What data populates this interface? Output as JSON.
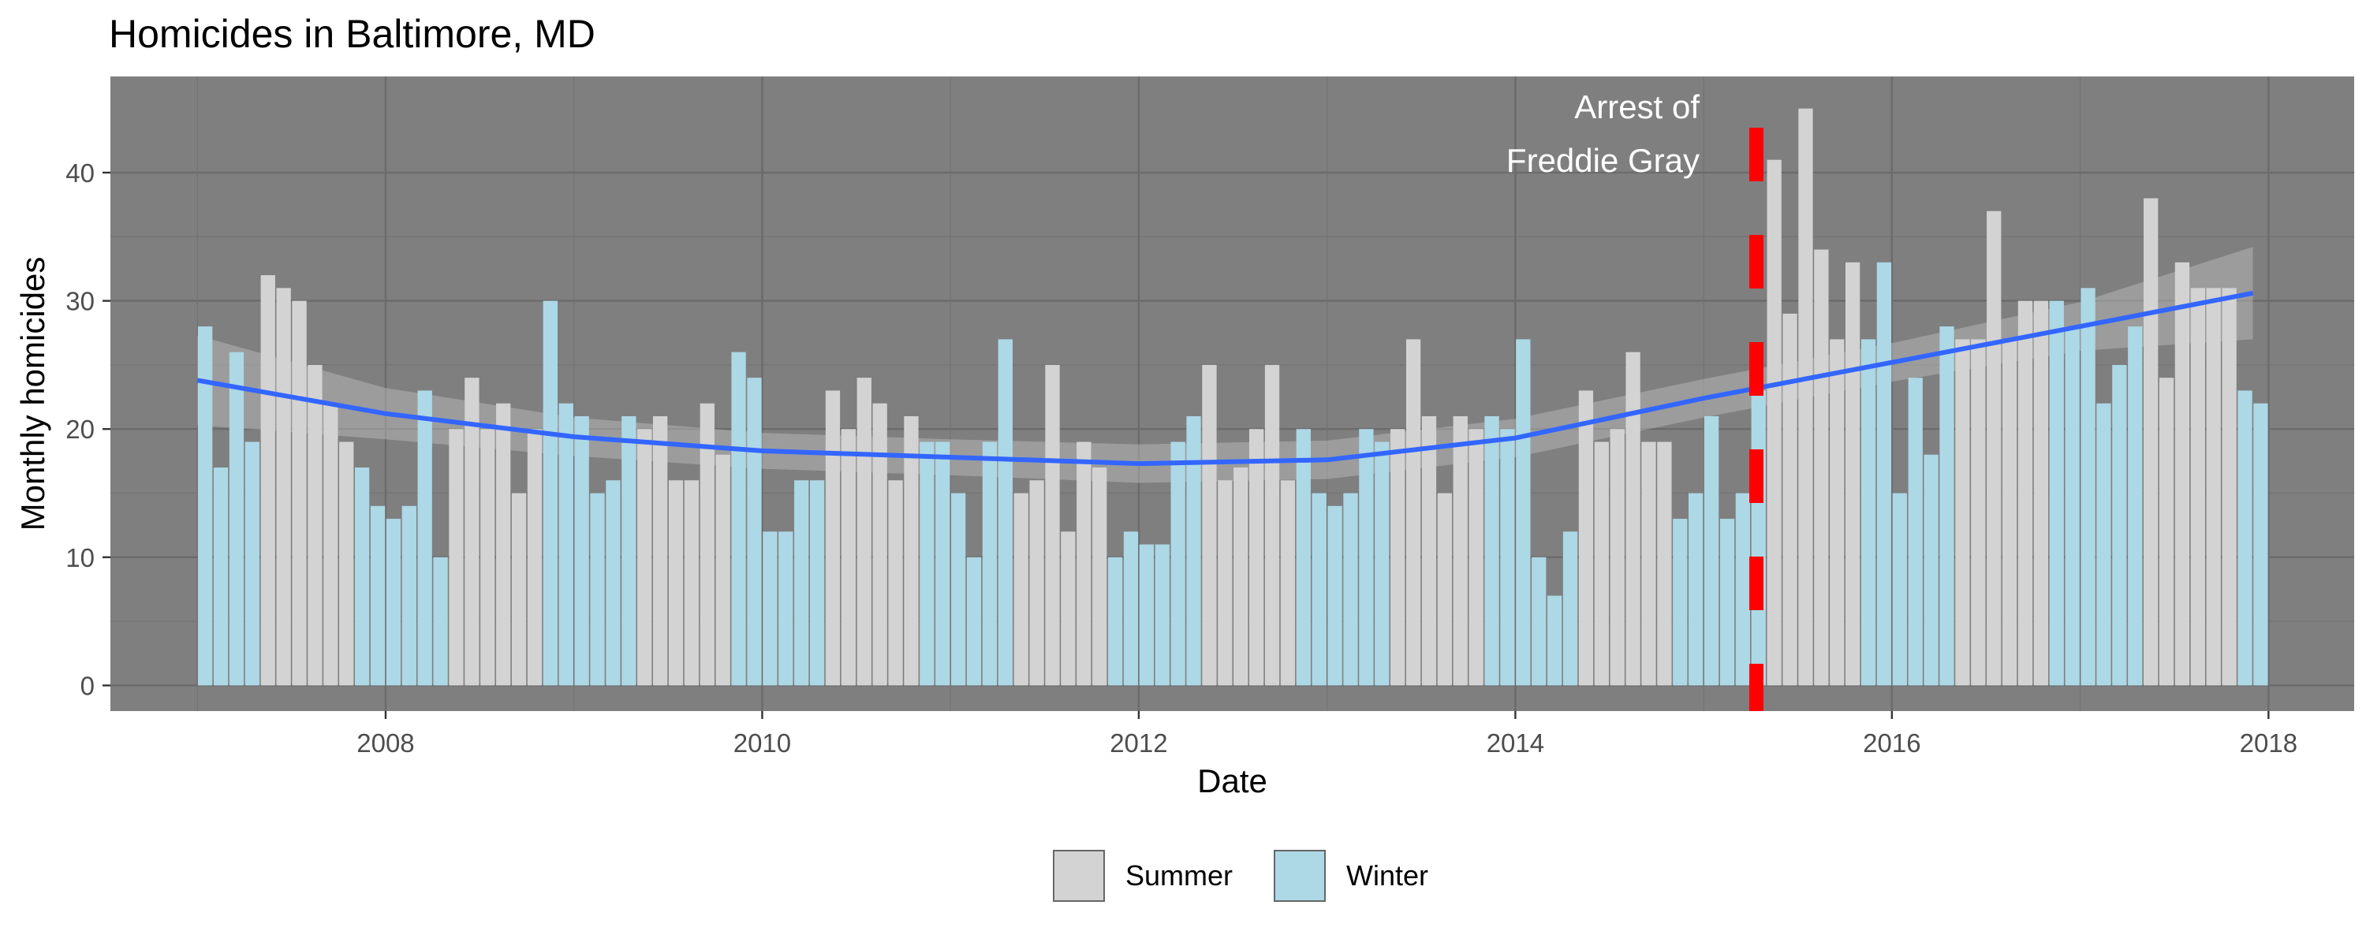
{
  "chart_data": {
    "type": "bar",
    "title": "Homicides in Baltimore, MD",
    "xlabel": "Date",
    "ylabel": "Monthly homicides",
    "x_range": [
      "2006-07-15",
      "2018-06-15"
    ],
    "ylim": [
      -2,
      47.5
    ],
    "x_ticks": [
      "2008",
      "2010",
      "2012",
      "2014",
      "2016",
      "2018"
    ],
    "y_ticks": [
      0,
      10,
      20,
      30,
      40
    ],
    "grid": true,
    "panel_background": "#7f7f7f",
    "series": [
      {
        "name": "Summer",
        "color": "#d3d3d3"
      },
      {
        "name": "Winter",
        "color": "#add8e6"
      }
    ],
    "points": [
      {
        "date": "2007-01",
        "value": 28,
        "season": "Winter"
      },
      {
        "date": "2007-02",
        "value": 17,
        "season": "Winter"
      },
      {
        "date": "2007-03",
        "value": 26,
        "season": "Winter"
      },
      {
        "date": "2007-04",
        "value": 19,
        "season": "Winter"
      },
      {
        "date": "2007-05",
        "value": 32,
        "season": "Summer"
      },
      {
        "date": "2007-06",
        "value": 31,
        "season": "Summer"
      },
      {
        "date": "2007-07",
        "value": 30,
        "season": "Summer"
      },
      {
        "date": "2007-08",
        "value": 25,
        "season": "Summer"
      },
      {
        "date": "2007-09",
        "value": 22,
        "season": "Summer"
      },
      {
        "date": "2007-10",
        "value": 19,
        "season": "Summer"
      },
      {
        "date": "2007-11",
        "value": 17,
        "season": "Winter"
      },
      {
        "date": "2007-12",
        "value": 14,
        "season": "Winter"
      },
      {
        "date": "2008-01",
        "value": 13,
        "season": "Winter"
      },
      {
        "date": "2008-02",
        "value": 14,
        "season": "Winter"
      },
      {
        "date": "2008-03",
        "value": 23,
        "season": "Winter"
      },
      {
        "date": "2008-04",
        "value": 10,
        "season": "Winter"
      },
      {
        "date": "2008-05",
        "value": 20,
        "season": "Summer"
      },
      {
        "date": "2008-06",
        "value": 24,
        "season": "Summer"
      },
      {
        "date": "2008-07",
        "value": 20,
        "season": "Summer"
      },
      {
        "date": "2008-08",
        "value": 22,
        "season": "Summer"
      },
      {
        "date": "2008-09",
        "value": 15,
        "season": "Summer"
      },
      {
        "date": "2008-10",
        "value": 20,
        "season": "Summer"
      },
      {
        "date": "2008-11",
        "value": 30,
        "season": "Winter"
      },
      {
        "date": "2008-12",
        "value": 22,
        "season": "Winter"
      },
      {
        "date": "2009-01",
        "value": 21,
        "season": "Winter"
      },
      {
        "date": "2009-02",
        "value": 15,
        "season": "Winter"
      },
      {
        "date": "2009-03",
        "value": 16,
        "season": "Winter"
      },
      {
        "date": "2009-04",
        "value": 21,
        "season": "Winter"
      },
      {
        "date": "2009-05",
        "value": 20,
        "season": "Summer"
      },
      {
        "date": "2009-06",
        "value": 21,
        "season": "Summer"
      },
      {
        "date": "2009-07",
        "value": 16,
        "season": "Summer"
      },
      {
        "date": "2009-08",
        "value": 16,
        "season": "Summer"
      },
      {
        "date": "2009-09",
        "value": 22,
        "season": "Summer"
      },
      {
        "date": "2009-10",
        "value": 18,
        "season": "Summer"
      },
      {
        "date": "2009-11",
        "value": 26,
        "season": "Winter"
      },
      {
        "date": "2009-12",
        "value": 24,
        "season": "Winter"
      },
      {
        "date": "2010-01",
        "value": 12,
        "season": "Winter"
      },
      {
        "date": "2010-02",
        "value": 12,
        "season": "Winter"
      },
      {
        "date": "2010-03",
        "value": 16,
        "season": "Winter"
      },
      {
        "date": "2010-04",
        "value": 16,
        "season": "Winter"
      },
      {
        "date": "2010-05",
        "value": 23,
        "season": "Summer"
      },
      {
        "date": "2010-06",
        "value": 20,
        "season": "Summer"
      },
      {
        "date": "2010-07",
        "value": 24,
        "season": "Summer"
      },
      {
        "date": "2010-08",
        "value": 22,
        "season": "Summer"
      },
      {
        "date": "2010-09",
        "value": 16,
        "season": "Summer"
      },
      {
        "date": "2010-10",
        "value": 21,
        "season": "Summer"
      },
      {
        "date": "2010-11",
        "value": 19,
        "season": "Winter"
      },
      {
        "date": "2010-12",
        "value": 19,
        "season": "Winter"
      },
      {
        "date": "2011-01",
        "value": 15,
        "season": "Winter"
      },
      {
        "date": "2011-02",
        "value": 10,
        "season": "Winter"
      },
      {
        "date": "2011-03",
        "value": 19,
        "season": "Winter"
      },
      {
        "date": "2011-04",
        "value": 27,
        "season": "Winter"
      },
      {
        "date": "2011-05",
        "value": 15,
        "season": "Summer"
      },
      {
        "date": "2011-06",
        "value": 16,
        "season": "Summer"
      },
      {
        "date": "2011-07",
        "value": 25,
        "season": "Summer"
      },
      {
        "date": "2011-08",
        "value": 12,
        "season": "Summer"
      },
      {
        "date": "2011-09",
        "value": 19,
        "season": "Summer"
      },
      {
        "date": "2011-10",
        "value": 17,
        "season": "Summer"
      },
      {
        "date": "2011-11",
        "value": 10,
        "season": "Winter"
      },
      {
        "date": "2011-12",
        "value": 12,
        "season": "Winter"
      },
      {
        "date": "2012-01",
        "value": 11,
        "season": "Winter"
      },
      {
        "date": "2012-02",
        "value": 11,
        "season": "Winter"
      },
      {
        "date": "2012-03",
        "value": 19,
        "season": "Winter"
      },
      {
        "date": "2012-04",
        "value": 21,
        "season": "Winter"
      },
      {
        "date": "2012-05",
        "value": 25,
        "season": "Summer"
      },
      {
        "date": "2012-06",
        "value": 16,
        "season": "Summer"
      },
      {
        "date": "2012-07",
        "value": 17,
        "season": "Summer"
      },
      {
        "date": "2012-08",
        "value": 20,
        "season": "Summer"
      },
      {
        "date": "2012-09",
        "value": 25,
        "season": "Summer"
      },
      {
        "date": "2012-10",
        "value": 16,
        "season": "Summer"
      },
      {
        "date": "2012-11",
        "value": 20,
        "season": "Winter"
      },
      {
        "date": "2012-12",
        "value": 15,
        "season": "Winter"
      },
      {
        "date": "2013-01",
        "value": 14,
        "season": "Winter"
      },
      {
        "date": "2013-02",
        "value": 15,
        "season": "Winter"
      },
      {
        "date": "2013-03",
        "value": 20,
        "season": "Winter"
      },
      {
        "date": "2013-04",
        "value": 19,
        "season": "Winter"
      },
      {
        "date": "2013-05",
        "value": 20,
        "season": "Summer"
      },
      {
        "date": "2013-06",
        "value": 27,
        "season": "Summer"
      },
      {
        "date": "2013-07",
        "value": 21,
        "season": "Summer"
      },
      {
        "date": "2013-08",
        "value": 15,
        "season": "Summer"
      },
      {
        "date": "2013-09",
        "value": 21,
        "season": "Summer"
      },
      {
        "date": "2013-10",
        "value": 20,
        "season": "Summer"
      },
      {
        "date": "2013-11",
        "value": 21,
        "season": "Winter"
      },
      {
        "date": "2013-12",
        "value": 20,
        "season": "Winter"
      },
      {
        "date": "2014-01",
        "value": 27,
        "season": "Winter"
      },
      {
        "date": "2014-02",
        "value": 10,
        "season": "Winter"
      },
      {
        "date": "2014-03",
        "value": 7,
        "season": "Winter"
      },
      {
        "date": "2014-04",
        "value": 12,
        "season": "Winter"
      },
      {
        "date": "2014-05",
        "value": 23,
        "season": "Summer"
      },
      {
        "date": "2014-06",
        "value": 19,
        "season": "Summer"
      },
      {
        "date": "2014-07",
        "value": 20,
        "season": "Summer"
      },
      {
        "date": "2014-08",
        "value": 26,
        "season": "Summer"
      },
      {
        "date": "2014-09",
        "value": 19,
        "season": "Summer"
      },
      {
        "date": "2014-10",
        "value": 19,
        "season": "Summer"
      },
      {
        "date": "2014-11",
        "value": 13,
        "season": "Winter"
      },
      {
        "date": "2014-12",
        "value": 15,
        "season": "Winter"
      },
      {
        "date": "2015-01",
        "value": 21,
        "season": "Winter"
      },
      {
        "date": "2015-02",
        "value": 13,
        "season": "Winter"
      },
      {
        "date": "2015-03",
        "value": 15,
        "season": "Winter"
      },
      {
        "date": "2015-04",
        "value": 23,
        "season": "Winter"
      },
      {
        "date": "2015-05",
        "value": 41,
        "season": "Summer"
      },
      {
        "date": "2015-06",
        "value": 29,
        "season": "Summer"
      },
      {
        "date": "2015-07",
        "value": 45,
        "season": "Summer"
      },
      {
        "date": "2015-08",
        "value": 34,
        "season": "Summer"
      },
      {
        "date": "2015-09",
        "value": 27,
        "season": "Summer"
      },
      {
        "date": "2015-10",
        "value": 33,
        "season": "Summer"
      },
      {
        "date": "2015-11",
        "value": 27,
        "season": "Winter"
      },
      {
        "date": "2015-12",
        "value": 33,
        "season": "Winter"
      },
      {
        "date": "2016-01",
        "value": 15,
        "season": "Winter"
      },
      {
        "date": "2016-02",
        "value": 24,
        "season": "Winter"
      },
      {
        "date": "2016-03",
        "value": 18,
        "season": "Winter"
      },
      {
        "date": "2016-04",
        "value": 28,
        "season": "Winter"
      },
      {
        "date": "2016-05",
        "value": 27,
        "season": "Summer"
      },
      {
        "date": "2016-06",
        "value": 27,
        "season": "Summer"
      },
      {
        "date": "2016-07",
        "value": 37,
        "season": "Summer"
      },
      {
        "date": "2016-08",
        "value": 27,
        "season": "Summer"
      },
      {
        "date": "2016-09",
        "value": 30,
        "season": "Summer"
      },
      {
        "date": "2016-10",
        "value": 30,
        "season": "Summer"
      },
      {
        "date": "2016-11",
        "value": 30,
        "season": "Winter"
      },
      {
        "date": "2016-12",
        "value": 28,
        "season": "Winter"
      },
      {
        "date": "2017-01",
        "value": 31,
        "season": "Winter"
      },
      {
        "date": "2017-02",
        "value": 22,
        "season": "Winter"
      },
      {
        "date": "2017-03",
        "value": 25,
        "season": "Winter"
      },
      {
        "date": "2017-04",
        "value": 28,
        "season": "Winter"
      },
      {
        "date": "2017-05",
        "value": 38,
        "season": "Summer"
      },
      {
        "date": "2017-06",
        "value": 24,
        "season": "Summer"
      },
      {
        "date": "2017-07",
        "value": 33,
        "season": "Summer"
      },
      {
        "date": "2017-08",
        "value": 31,
        "season": "Summer"
      },
      {
        "date": "2017-09",
        "value": 31,
        "season": "Summer"
      },
      {
        "date": "2017-10",
        "value": 31,
        "season": "Summer"
      },
      {
        "date": "2017-11",
        "value": 23,
        "season": "Winter"
      },
      {
        "date": "2017-12",
        "value": 22,
        "season": "Winter"
      }
    ],
    "trend": {
      "color": "#3366ff",
      "band_color": "#c0c0c0",
      "points": [
        {
          "date": "2007-01",
          "value": 23.8,
          "lower": 20.3,
          "upper": 27.3
        },
        {
          "date": "2008-01",
          "value": 21.2,
          "lower": 19.2,
          "upper": 23.2
        },
        {
          "date": "2009-01",
          "value": 19.4,
          "lower": 17.9,
          "upper": 20.9
        },
        {
          "date": "2010-01",
          "value": 18.3,
          "lower": 16.9,
          "upper": 19.7
        },
        {
          "date": "2011-01",
          "value": 17.8,
          "lower": 16.4,
          "upper": 19.2
        },
        {
          "date": "2012-01",
          "value": 17.3,
          "lower": 15.8,
          "upper": 18.8
        },
        {
          "date": "2013-01",
          "value": 17.6,
          "lower": 16.1,
          "upper": 19.1
        },
        {
          "date": "2014-01",
          "value": 19.3,
          "lower": 17.8,
          "upper": 20.8
        },
        {
          "date": "2015-01",
          "value": 22.4,
          "lower": 20.9,
          "upper": 23.9
        },
        {
          "date": "2016-01",
          "value": 25.2,
          "lower": 23.7,
          "upper": 26.7
        },
        {
          "date": "2017-01",
          "value": 28.0,
          "lower": 26.1,
          "upper": 29.9
        },
        {
          "date": "2017-12",
          "value": 30.6,
          "lower": 27.0,
          "upper": 34.2
        }
      ]
    },
    "annotation": {
      "text_lines": [
        "Arrest of",
        "Freddie Gray"
      ],
      "date": "2015-04-12",
      "line_color": "#ff0000",
      "text_color": "#ffffff"
    },
    "legend": {
      "position": "bottom",
      "entries": [
        "Summer",
        "Winter"
      ]
    }
  }
}
